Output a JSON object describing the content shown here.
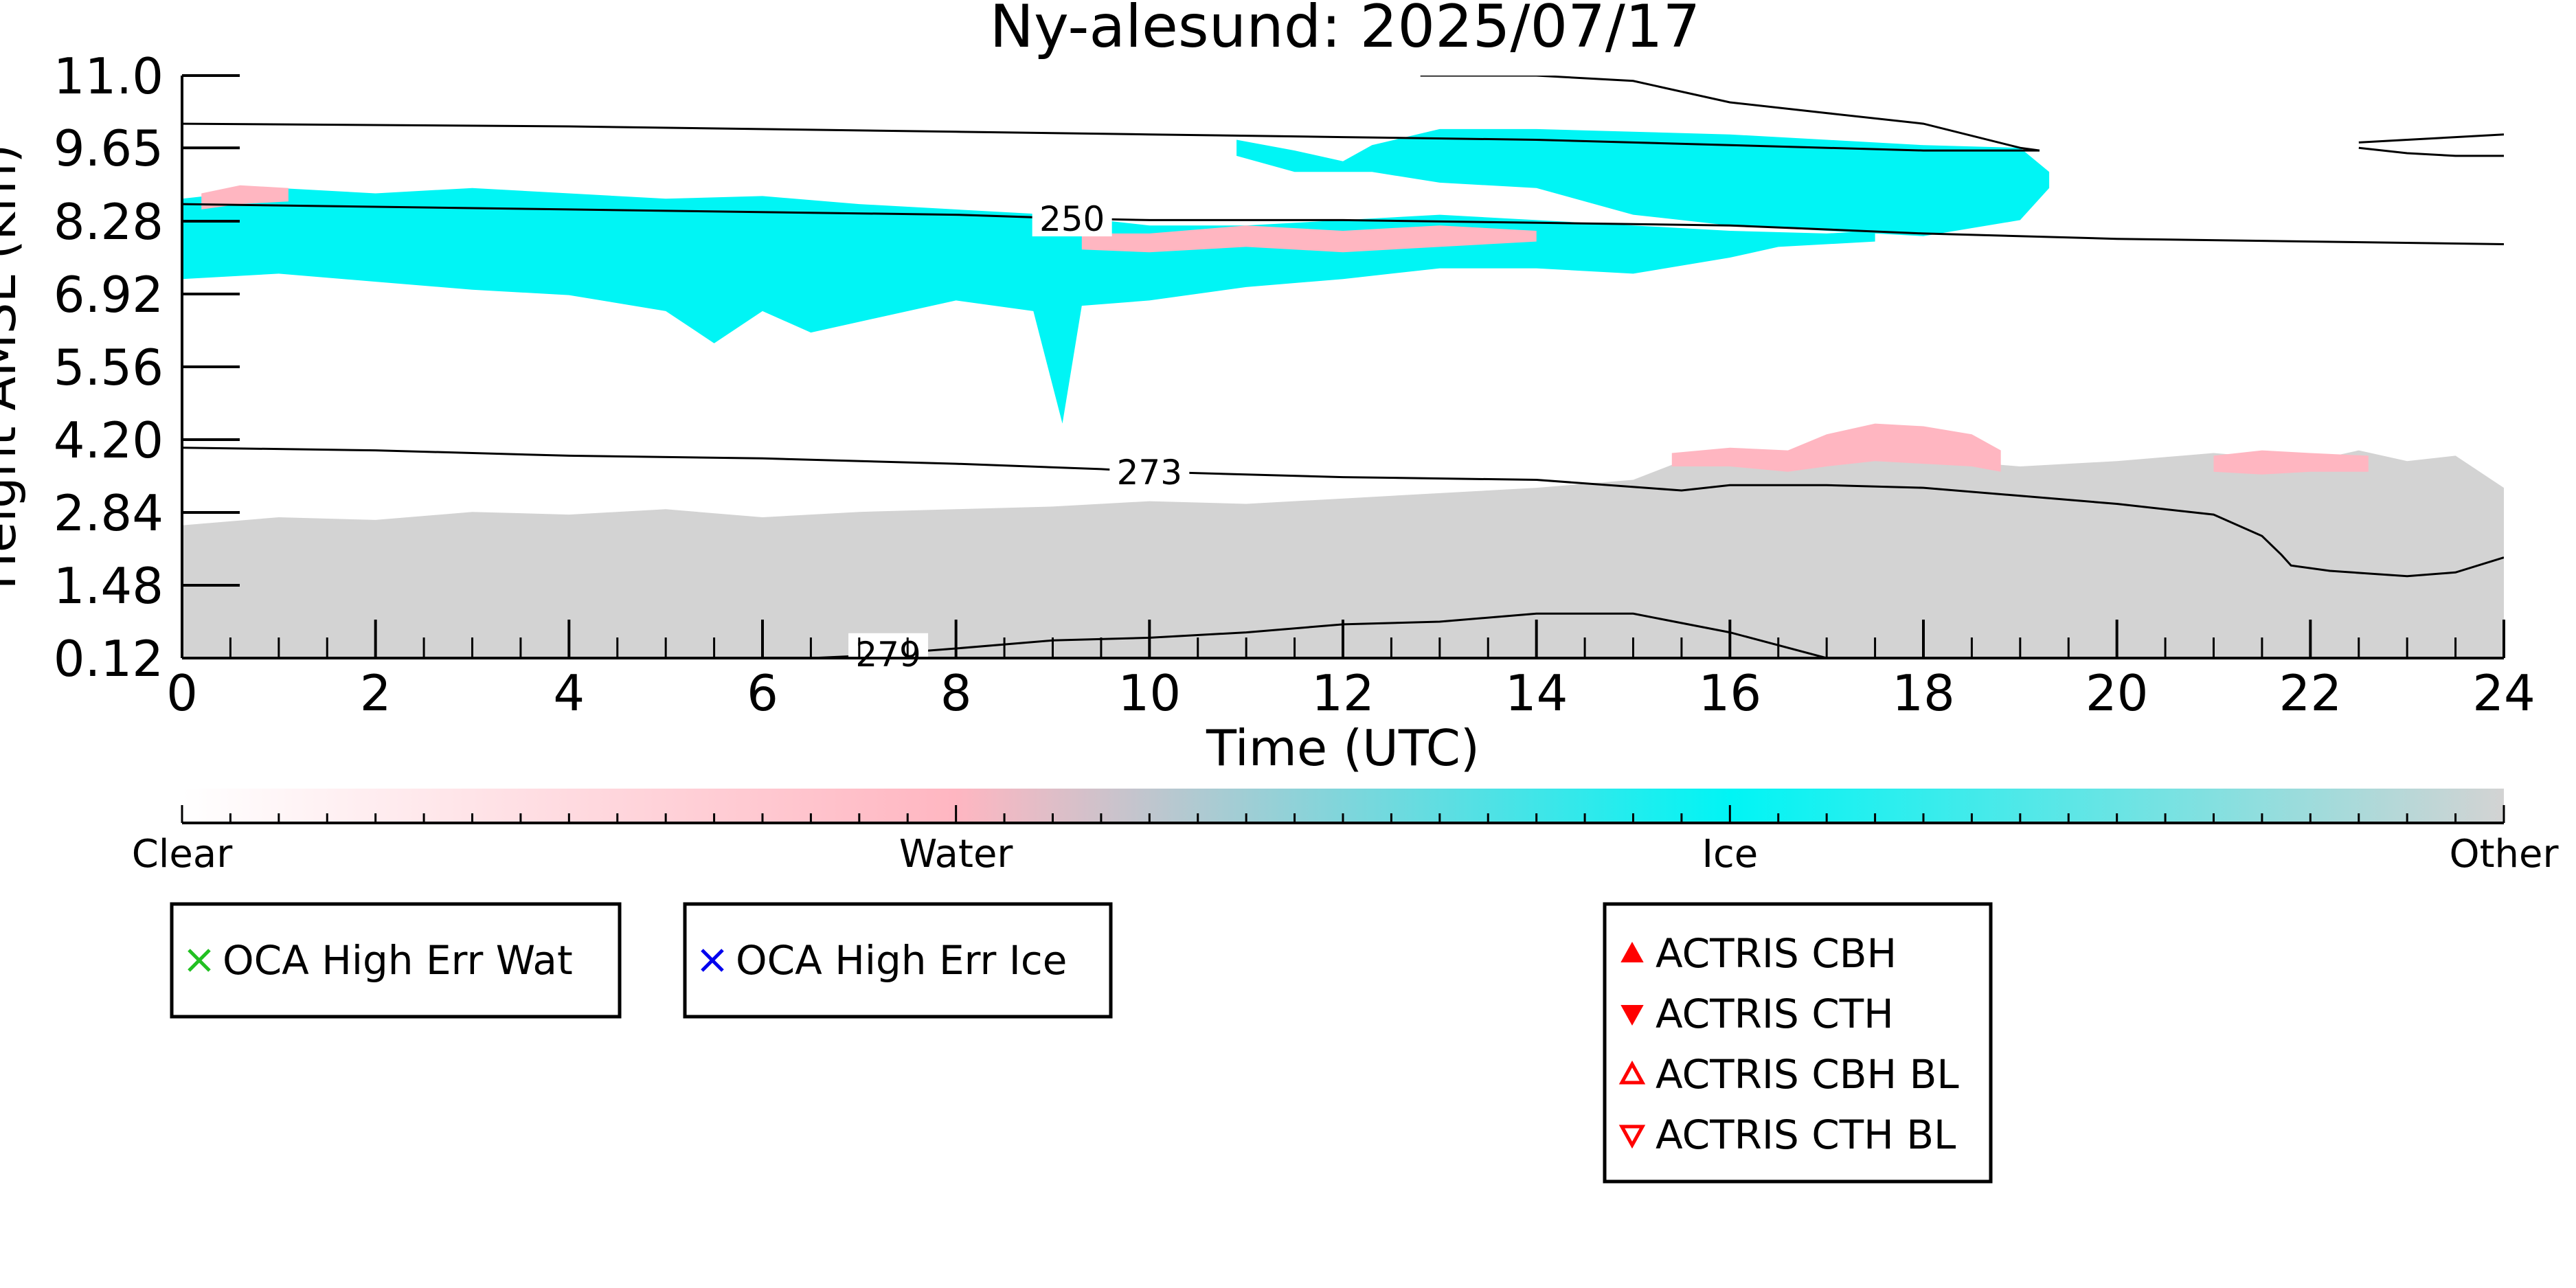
{
  "chart_data": {
    "type": "heatmap",
    "title": "Ny-alesund: 2025/07/17",
    "xlabel": "Time (UTC)",
    "ylabel": "Height AMSL (km)",
    "xlim": [
      0,
      24
    ],
    "ylim": [
      0.12,
      11.0
    ],
    "x_ticks": [
      0,
      2,
      4,
      6,
      8,
      10,
      12,
      14,
      16,
      18,
      20,
      22,
      24
    ],
    "y_ticks": [
      "0.12",
      "1.48",
      "2.84",
      "4.20",
      "5.56",
      "6.92",
      "8.28",
      "9.65",
      "11.0"
    ],
    "grid": false,
    "classification_colorbar": {
      "classes": [
        "Clear",
        "Water",
        "Ice",
        "Other"
      ],
      "colors": [
        "#ffffff",
        "#ffb6c1",
        "#00f5f5",
        "#d3d3d3"
      ]
    },
    "regions": [
      {
        "name": "Other",
        "color": "#d3d3d3",
        "top": [
          [
            0,
            2.6
          ],
          [
            1,
            2.75
          ],
          [
            2,
            2.7
          ],
          [
            3,
            2.85
          ],
          [
            4,
            2.8
          ],
          [
            5,
            2.9
          ],
          [
            6,
            2.75
          ],
          [
            7,
            2.85
          ],
          [
            8,
            2.9
          ],
          [
            9,
            2.95
          ],
          [
            10,
            3.05
          ],
          [
            11,
            3.0
          ],
          [
            12,
            3.1
          ],
          [
            13,
            3.2
          ],
          [
            14,
            3.3
          ],
          [
            15,
            3.45
          ],
          [
            15.5,
            3.8
          ],
          [
            16,
            3.9
          ],
          [
            17,
            3.8
          ],
          [
            18,
            3.85
          ],
          [
            19,
            3.7
          ],
          [
            20,
            3.8
          ],
          [
            21,
            3.95
          ],
          [
            22,
            3.8
          ],
          [
            22.5,
            4.0
          ],
          [
            23,
            3.8
          ],
          [
            23.5,
            3.9
          ],
          [
            24,
            3.3
          ]
        ],
        "bottom": [
          [
            0,
            0.12
          ],
          [
            24,
            0.12
          ]
        ]
      },
      {
        "name": "Ice",
        "color": "#00f5f5",
        "top": [
          [
            0,
            8.7
          ],
          [
            1,
            8.9
          ],
          [
            2,
            8.8
          ],
          [
            3,
            8.9
          ],
          [
            4,
            8.8
          ],
          [
            5,
            8.7
          ],
          [
            6,
            8.75
          ],
          [
            7,
            8.6
          ],
          [
            8,
            8.5
          ],
          [
            9,
            8.4
          ],
          [
            10,
            8.2
          ],
          [
            11,
            8.2
          ],
          [
            12,
            8.3
          ],
          [
            13,
            8.4
          ],
          [
            14,
            8.3
          ],
          [
            15,
            8.2
          ],
          [
            16,
            8.1
          ],
          [
            17,
            8.05
          ],
          [
            17.5,
            8.1
          ]
        ],
        "bottom": [
          [
            0,
            7.2
          ],
          [
            1,
            7.3
          ],
          [
            2,
            7.15
          ],
          [
            3,
            7.0
          ],
          [
            4,
            6.9
          ],
          [
            5,
            6.6
          ],
          [
            5.5,
            6.0
          ],
          [
            6,
            6.6
          ],
          [
            6.5,
            6.2
          ],
          [
            7,
            6.4
          ],
          [
            8,
            6.8
          ],
          [
            8.8,
            6.6
          ],
          [
            9.1,
            4.5
          ],
          [
            9.3,
            6.7
          ],
          [
            10,
            6.8
          ],
          [
            11,
            7.05
          ],
          [
            12,
            7.2
          ],
          [
            13,
            7.4
          ],
          [
            14,
            7.4
          ],
          [
            15,
            7.3
          ],
          [
            16,
            7.6
          ],
          [
            16.5,
            7.8
          ],
          [
            17.5,
            7.9
          ]
        ]
      },
      {
        "name": "Ice",
        "color": "#00f5f5",
        "top": [
          [
            10.9,
            9.8
          ],
          [
            11.5,
            9.6
          ],
          [
            12,
            9.4
          ],
          [
            12.3,
            9.7
          ],
          [
            13,
            10.0
          ],
          [
            14,
            10.0
          ],
          [
            15,
            9.95
          ],
          [
            16,
            9.9
          ],
          [
            17,
            9.8
          ],
          [
            18,
            9.7
          ],
          [
            19,
            9.65
          ],
          [
            19.3,
            9.2
          ]
        ],
        "bottom": [
          [
            10.9,
            9.5
          ],
          [
            11.5,
            9.2
          ],
          [
            12,
            9.2
          ],
          [
            12.3,
            9.2
          ],
          [
            13,
            9.0
          ],
          [
            14,
            8.9
          ],
          [
            15,
            8.4
          ],
          [
            16,
            8.2
          ],
          [
            17,
            8.1
          ],
          [
            18,
            8.0
          ],
          [
            19,
            8.3
          ],
          [
            19.3,
            8.9
          ]
        ]
      },
      {
        "name": "Water",
        "color": "#ffb6c1",
        "top": [
          [
            0.2,
            8.8
          ],
          [
            0.6,
            8.95
          ],
          [
            1.1,
            8.9
          ]
        ],
        "bottom": [
          [
            0.2,
            8.5
          ],
          [
            0.6,
            8.6
          ],
          [
            1.1,
            8.65
          ]
        ]
      },
      {
        "name": "Water",
        "color": "#ffb6c1",
        "top": [
          [
            9.3,
            8.05
          ],
          [
            10,
            8.05
          ],
          [
            11,
            8.2
          ],
          [
            12,
            8.1
          ],
          [
            13,
            8.2
          ],
          [
            14,
            8.1
          ]
        ],
        "bottom": [
          [
            9.3,
            7.75
          ],
          [
            10,
            7.7
          ],
          [
            11,
            7.8
          ],
          [
            12,
            7.7
          ],
          [
            13,
            7.8
          ],
          [
            14,
            7.9
          ]
        ]
      },
      {
        "name": "Water",
        "color": "#ffb6c1",
        "top": [
          [
            15.4,
            3.95
          ],
          [
            16,
            4.05
          ],
          [
            16.6,
            4.0
          ],
          [
            17,
            4.3
          ],
          [
            17.5,
            4.5
          ],
          [
            18,
            4.45
          ],
          [
            18.5,
            4.3
          ],
          [
            18.8,
            4.0
          ]
        ],
        "bottom": [
          [
            15.4,
            3.7
          ],
          [
            16,
            3.7
          ],
          [
            16.6,
            3.6
          ],
          [
            17,
            3.7
          ],
          [
            17.5,
            3.8
          ],
          [
            18,
            3.75
          ],
          [
            18.5,
            3.7
          ],
          [
            18.8,
            3.6
          ]
        ]
      },
      {
        "name": "Water",
        "color": "#ffb6c1",
        "top": [
          [
            21,
            3.9
          ],
          [
            21.5,
            4.0
          ],
          [
            22,
            3.95
          ],
          [
            22.6,
            3.9
          ]
        ],
        "bottom": [
          [
            21,
            3.6
          ],
          [
            21.5,
            3.55
          ],
          [
            22,
            3.6
          ],
          [
            22.6,
            3.6
          ]
        ]
      }
    ],
    "temperature_contours": [
      {
        "label": "250",
        "points": [
          [
            0,
            10.1
          ],
          [
            4,
            10.05
          ],
          [
            8,
            9.95
          ],
          [
            10,
            9.9
          ],
          [
            12,
            9.85
          ],
          [
            14,
            9.8
          ],
          [
            16,
            9.7
          ],
          [
            18,
            9.6
          ],
          [
            19.2,
            9.6
          ]
        ]
      },
      {
        "label": "250",
        "points": [
          [
            0,
            8.6
          ],
          [
            4,
            8.5
          ],
          [
            8,
            8.4
          ],
          [
            9.2,
            8.33
          ],
          [
            10,
            8.3
          ],
          [
            12,
            8.3
          ],
          [
            14,
            8.25
          ],
          [
            16,
            8.2
          ],
          [
            18,
            8.05
          ],
          [
            20,
            7.95
          ],
          [
            22,
            7.9
          ],
          [
            24,
            7.85
          ]
        ]
      },
      {
        "label": "",
        "points": [
          [
            12.8,
            11.0
          ],
          [
            14,
            11.0
          ],
          [
            15,
            10.9
          ],
          [
            16,
            10.5
          ],
          [
            17,
            10.3
          ],
          [
            18,
            10.1
          ],
          [
            19,
            9.65
          ],
          [
            19.2,
            9.6
          ]
        ]
      },
      {
        "label": "",
        "points": [
          [
            22.5,
            9.75
          ],
          [
            23,
            9.8
          ],
          [
            23.5,
            9.85
          ],
          [
            24,
            9.9
          ]
        ]
      },
      {
        "label": "",
        "points": [
          [
            22.5,
            9.65
          ],
          [
            23,
            9.55
          ],
          [
            23.5,
            9.5
          ],
          [
            24,
            9.5
          ]
        ]
      },
      {
        "label": "273",
        "points": [
          [
            0,
            4.05
          ],
          [
            2,
            4.0
          ],
          [
            4,
            3.9
          ],
          [
            6,
            3.85
          ],
          [
            8,
            3.75
          ],
          [
            9.5,
            3.65
          ],
          [
            10,
            3.6
          ],
          [
            12,
            3.5
          ],
          [
            14,
            3.45
          ],
          [
            15.5,
            3.25
          ],
          [
            16,
            3.35
          ],
          [
            17,
            3.35
          ],
          [
            18,
            3.3
          ],
          [
            19,
            3.15
          ],
          [
            20,
            3.0
          ],
          [
            21,
            2.8
          ],
          [
            21.5,
            2.4
          ],
          [
            21.7,
            2.05
          ],
          [
            21.8,
            1.85
          ],
          [
            22.2,
            1.75
          ],
          [
            23,
            1.65
          ],
          [
            23.5,
            1.72
          ],
          [
            24,
            2.0
          ]
        ]
      },
      {
        "label": "279",
        "points": [
          [
            6.5,
            0.12
          ],
          [
            7,
            0.16
          ],
          [
            8,
            0.3
          ],
          [
            9,
            0.45
          ],
          [
            10,
            0.5
          ],
          [
            11,
            0.6
          ],
          [
            12,
            0.75
          ],
          [
            13,
            0.8
          ],
          [
            14,
            0.95
          ],
          [
            15,
            0.95
          ],
          [
            16,
            0.6
          ],
          [
            17,
            0.12
          ]
        ]
      }
    ],
    "legends": [
      {
        "entries": [
          {
            "label": "OCA High Err Wat",
            "marker": "x",
            "color": "#22c022"
          }
        ]
      },
      {
        "entries": [
          {
            "label": "OCA High Err Ice",
            "marker": "x",
            "color": "#0000ee"
          }
        ]
      },
      {
        "entries": [
          {
            "label": "ACTRIS CBH",
            "marker": "triangle-up-filled",
            "color": "#ff0000"
          },
          {
            "label": "ACTRIS CTH",
            "marker": "triangle-down-filled",
            "color": "#ff0000"
          },
          {
            "label": "ACTRIS CBH BL",
            "marker": "triangle-up-open",
            "color": "#ff0000"
          },
          {
            "label": "ACTRIS CTH BL",
            "marker": "triangle-down-open",
            "color": "#ff0000"
          }
        ]
      }
    ]
  }
}
